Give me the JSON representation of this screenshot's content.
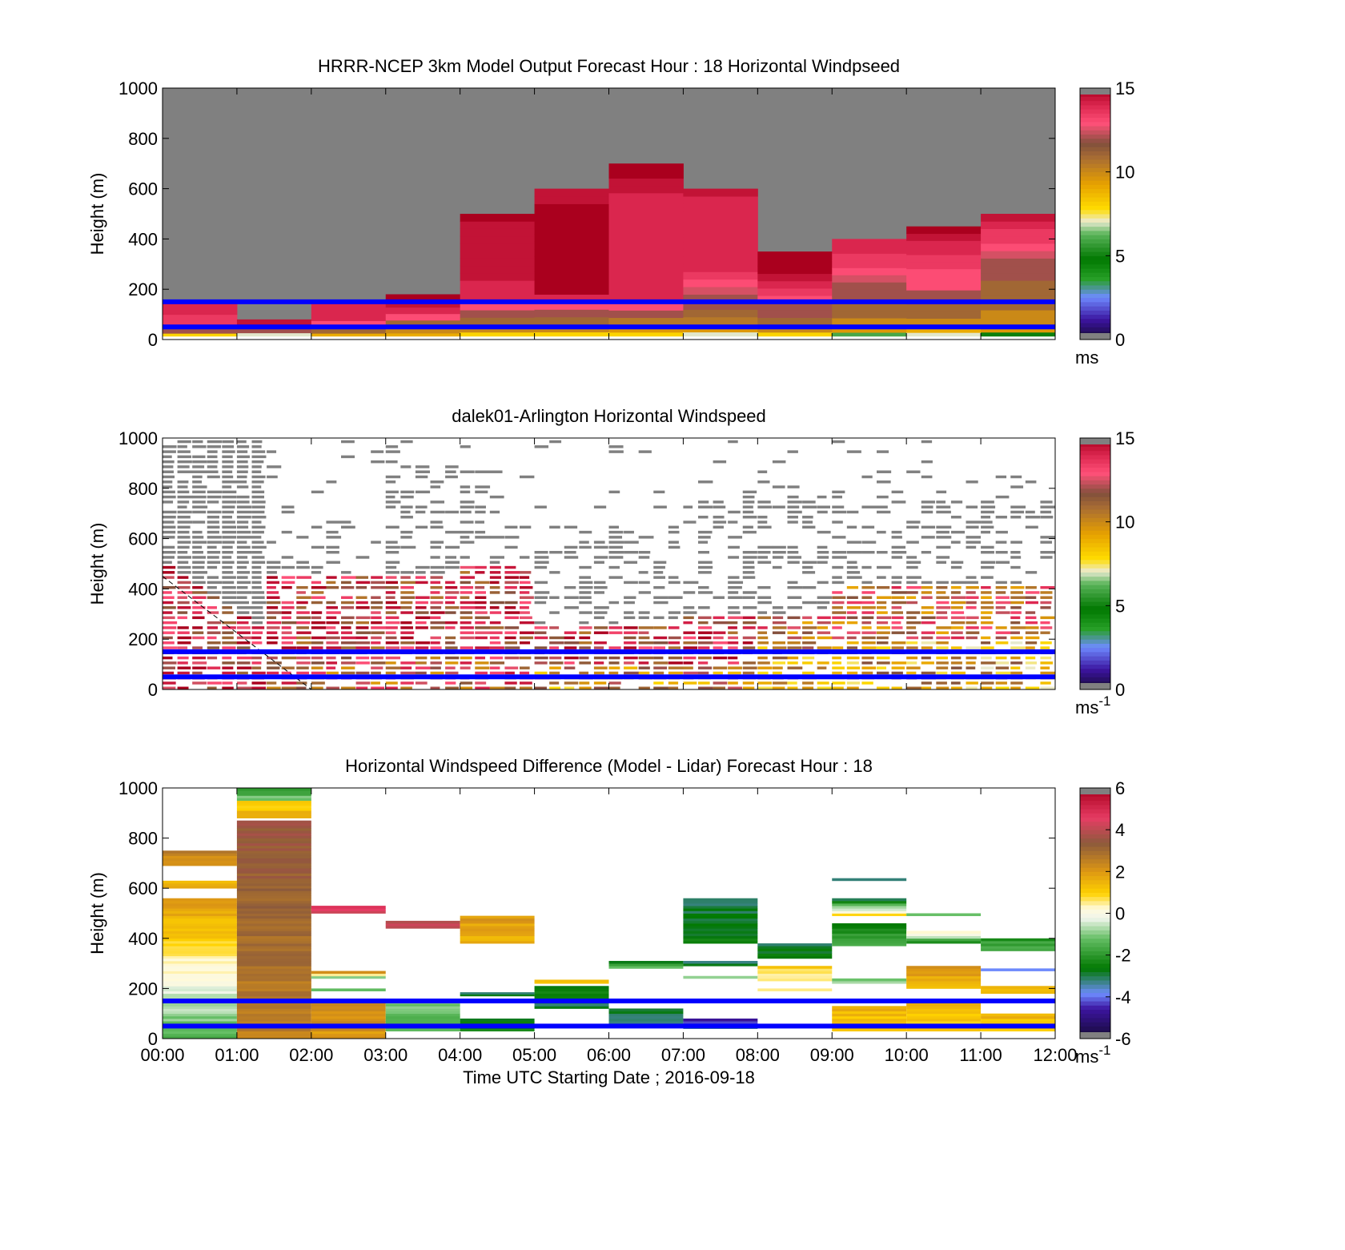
{
  "figure": {
    "xlabel": "Time UTC  Starting Date ; 2016-09-18",
    "x_ticks": [
      "00:00",
      "01:00",
      "02:00",
      "03:00",
      "04:00",
      "05:00",
      "06:00",
      "07:00",
      "08:00",
      "09:00",
      "10:00",
      "11:00",
      "12:00"
    ],
    "y_ticks": [
      "0",
      "200",
      "400",
      "600",
      "800",
      "1000"
    ],
    "ylabel": "Height (m)",
    "marker_lines_m": [
      50,
      150
    ],
    "marker_line_color": "#0000ff",
    "missing_color": "#808080"
  },
  "chart_data": [
    {
      "type": "heatmap",
      "name": "model",
      "title": "HRRR-NCEP 3km Model Output   Forecast Hour : 18 Horizontal Windpseed",
      "ylabel": "Height (m)",
      "xlim": [
        0,
        12
      ],
      "ylim": [
        0,
        1000
      ],
      "colorbar": {
        "ticks": [
          "0",
          "5",
          "10",
          "15"
        ],
        "range": [
          0,
          15
        ],
        "unit": "ms",
        "palette": "speed"
      },
      "columns": [
        {
          "t": 0,
          "top": 150,
          "values": [
            8,
            12,
            13.5,
            13.5,
            14,
            14
          ]
        },
        {
          "t": 1,
          "top": 80,
          "values": [
            7,
            12,
            14.5
          ]
        },
        {
          "t": 2,
          "top": 150,
          "values": [
            9,
            11,
            13,
            14,
            14,
            14
          ]
        },
        {
          "t": 3,
          "top": 180,
          "values": [
            9,
            10,
            11,
            13,
            14,
            14.5,
            15
          ]
        },
        {
          "t": 4,
          "top": 500,
          "values": [
            8,
            10,
            11,
            12,
            13,
            14,
            14,
            14,
            14.5,
            14.5,
            14.5,
            14.5,
            14.5,
            14.5,
            14.5,
            14.5,
            15
          ]
        },
        {
          "t": 5,
          "top": 600,
          "values": [
            8,
            10,
            11,
            12,
            13,
            14,
            15,
            15,
            15,
            15,
            15,
            15,
            15,
            15,
            15,
            15,
            15,
            15,
            14.5,
            14.5
          ]
        },
        {
          "t": 6,
          "top": 700,
          "values": [
            8,
            9.5,
            10.5,
            12,
            13,
            14,
            14,
            14,
            14,
            14,
            14,
            14,
            14,
            14,
            14,
            14,
            14,
            14,
            14,
            14,
            14.5,
            14.5,
            15,
            15
          ]
        },
        {
          "t": 7,
          "top": 600,
          "values": [
            7,
            9.5,
            10.5,
            11,
            12,
            12,
            12.5,
            13,
            13.5,
            14,
            14,
            14,
            14,
            14,
            14,
            14,
            14,
            14,
            14,
            14.5
          ]
        },
        {
          "t": 8,
          "top": 350,
          "values": [
            8,
            10,
            11,
            12,
            12,
            13,
            13.5,
            14,
            14.5,
            15,
            15,
            15
          ]
        },
        {
          "t": 9,
          "top": 400,
          "values": [
            6,
            9.5,
            10,
            11,
            11,
            12,
            12,
            12,
            12.5,
            13,
            13.5,
            13.5,
            14,
            14
          ]
        },
        {
          "t": 10,
          "top": 450,
          "values": [
            7,
            9,
            10,
            11,
            11,
            12,
            12,
            13,
            13,
            13,
            13.5,
            13.5,
            14,
            14,
            14.5,
            15
          ]
        },
        {
          "t": 11,
          "top": 500,
          "values": [
            5,
            9.5,
            10,
            10,
            11,
            11,
            11,
            11,
            12,
            12,
            12,
            12.5,
            13,
            13.5,
            13.5,
            14,
            14.5
          ]
        }
      ]
    },
    {
      "type": "heatmap",
      "name": "lidar",
      "title": "dalek01-Arlington  Horizontal Windspeed",
      "ylabel": "Height (m)",
      "xlim": [
        0,
        12
      ],
      "ylim": [
        0,
        1000
      ],
      "colorbar": {
        "ticks": [
          "0",
          "5",
          "10",
          "15"
        ],
        "range": [
          0,
          15
        ],
        "unit": "ms",
        "unit_sup": "-1",
        "palette": "speed"
      },
      "grid_dt_hours": 0.2,
      "grid_dz_m": 20,
      "note": "high-resolution lidar retrieval; cells reproduced procedurally with gaps (white) and missing data (gray)"
    },
    {
      "type": "heatmap",
      "name": "difference",
      "title": "Horizontal Windspeed Difference (Model - Lidar) Forecast Hour : 18",
      "ylabel": "Height (m)",
      "xlabel": "Time UTC  Starting Date ; 2016-09-18",
      "xlim": [
        0,
        12
      ],
      "ylim": [
        0,
        1000
      ],
      "colorbar": {
        "ticks": [
          "-6",
          "-4",
          "-2",
          "0",
          "2",
          "4",
          "6"
        ],
        "range": [
          -6,
          6
        ],
        "unit": "ms",
        "unit_sup": "-1",
        "palette": "diff"
      },
      "bands": [
        {
          "t": 0,
          "z0": 0,
          "z1": 560,
          "v0": -1.5,
          "v1": 2
        },
        {
          "t": 0,
          "z0": 600,
          "z1": 630,
          "v0": 1.5,
          "v1": 1.5
        },
        {
          "t": 0,
          "z0": 690,
          "z1": 750,
          "v0": 2,
          "v1": 2.5
        },
        {
          "t": 1,
          "z0": 0,
          "z1": 870,
          "v0": 2.5,
          "v1": 3.5
        },
        {
          "t": 1,
          "z0": 880,
          "z1": 950,
          "v0": 1.5,
          "v1": 1
        },
        {
          "t": 1,
          "z0": 950,
          "z1": 1000,
          "v0": -1,
          "v1": -2
        },
        {
          "t": 2,
          "z0": 0,
          "z1": 160,
          "v0": 2,
          "v1": 2.5
        },
        {
          "t": 2,
          "z0": 190,
          "z1": 200,
          "v0": -1,
          "v1": -1
        },
        {
          "t": 2,
          "z0": 240,
          "z1": 270,
          "v0": -1,
          "v1": 2
        },
        {
          "t": 2,
          "z0": 500,
          "z1": 530,
          "v0": 4,
          "v1": 5
        },
        {
          "t": 3,
          "z0": 30,
          "z1": 140,
          "v0": -1.5,
          "v1": -1
        },
        {
          "t": 3,
          "z0": 440,
          "z1": 470,
          "v0": 4,
          "v1": 4
        },
        {
          "t": 4,
          "z0": 30,
          "z1": 80,
          "v0": -2.5,
          "v1": -2.5
        },
        {
          "t": 4,
          "z0": 170,
          "z1": 185,
          "v0": -3,
          "v1": -3
        },
        {
          "t": 4,
          "z0": 380,
          "z1": 490,
          "v0": 1.5,
          "v1": 2
        },
        {
          "t": 5,
          "z0": 120,
          "z1": 210,
          "v0": -3,
          "v1": -2.5
        },
        {
          "t": 5,
          "z0": 220,
          "z1": 235,
          "v0": 1.5,
          "v1": 1.5
        },
        {
          "t": 6,
          "z0": 50,
          "z1": 120,
          "v0": -3,
          "v1": -3
        },
        {
          "t": 6,
          "z0": 280,
          "z1": 310,
          "v0": -1,
          "v1": -3
        },
        {
          "t": 7,
          "z0": 40,
          "z1": 80,
          "v0": -3,
          "v1": -4.5
        },
        {
          "t": 7,
          "z0": 240,
          "z1": 250,
          "v0": -1,
          "v1": -1
        },
        {
          "t": 7,
          "z0": 290,
          "z1": 310,
          "v0": -3,
          "v1": -3
        },
        {
          "t": 7,
          "z0": 380,
          "z1": 560,
          "v0": -2.5,
          "v1": -3
        },
        {
          "t": 8,
          "z0": 190,
          "z1": 200,
          "v0": 0.3,
          "v1": 0.3
        },
        {
          "t": 8,
          "z0": 230,
          "z1": 290,
          "v0": 0.5,
          "v1": 1
        },
        {
          "t": 8,
          "z0": 320,
          "z1": 380,
          "v0": -2.5,
          "v1": -3
        },
        {
          "t": 9,
          "z0": 30,
          "z1": 130,
          "v0": 1,
          "v1": 1.5
        },
        {
          "t": 9,
          "z0": 220,
          "z1": 240,
          "v0": -1,
          "v1": -1
        },
        {
          "t": 9,
          "z0": 370,
          "z1": 460,
          "v0": -1.5,
          "v1": -2.5
        },
        {
          "t": 9,
          "z0": 490,
          "z1": 560,
          "v0": 1,
          "v1": -3
        },
        {
          "t": 9,
          "z0": 630,
          "z1": 640,
          "v0": -3,
          "v1": -3
        },
        {
          "t": 10,
          "z0": 30,
          "z1": 150,
          "v0": 1,
          "v1": 1.5
        },
        {
          "t": 10,
          "z0": 200,
          "z1": 290,
          "v0": 1.5,
          "v1": 2
        },
        {
          "t": 10,
          "z0": 380,
          "z1": 430,
          "v0": -2,
          "v1": 0.5
        },
        {
          "t": 10,
          "z0": 490,
          "z1": 500,
          "v0": -1,
          "v1": -1
        },
        {
          "t": 11,
          "z0": 30,
          "z1": 100,
          "v0": 1,
          "v1": 1.5
        },
        {
          "t": 11,
          "z0": 180,
          "z1": 210,
          "v0": 1.5,
          "v1": 1.5
        },
        {
          "t": 11,
          "z0": 270,
          "z1": 280,
          "v0": -4,
          "v1": -4
        },
        {
          "t": 11,
          "z0": 350,
          "z1": 400,
          "v0": -1.5,
          "v1": -2
        }
      ]
    }
  ]
}
